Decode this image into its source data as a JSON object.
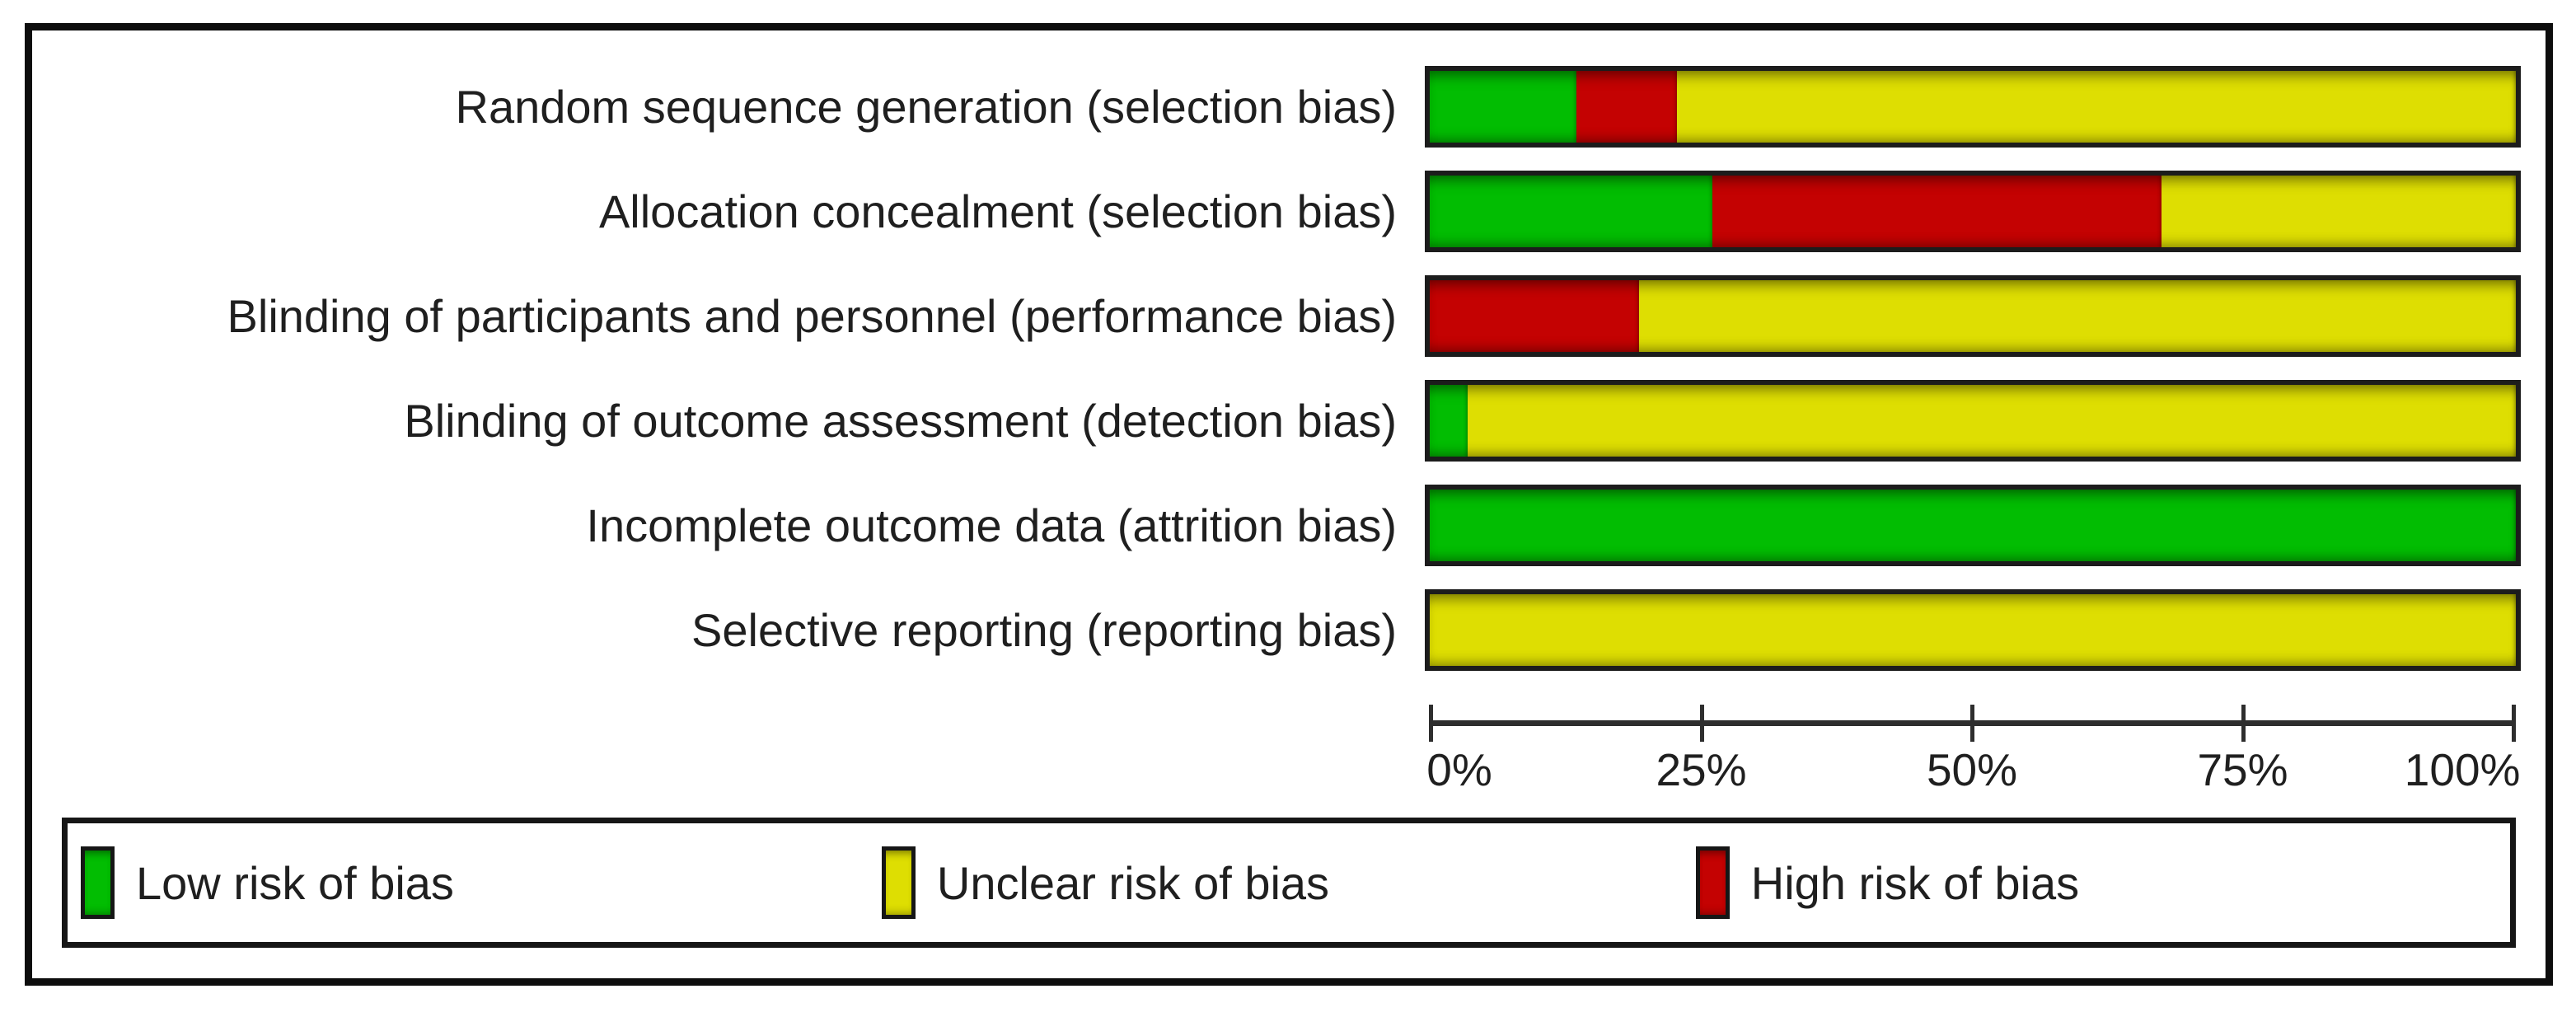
{
  "chart_data": {
    "type": "bar",
    "orientation": "horizontal",
    "stacked": true,
    "title": "",
    "xlabel": "",
    "ylabel": "",
    "categories": [
      "Random sequence generation (selection bias)",
      "Allocation concealment (selection bias)",
      "Blinding of participants and personnel (performance bias)",
      "Blinding of outcome assessment (detection bias)",
      "Incomplete outcome data (attrition bias)",
      "Selective reporting (reporting bias)"
    ],
    "series": [
      {
        "name": "Low risk of bias",
        "color": "#02BD02",
        "values": [
          13.5,
          26.0,
          0.0,
          3.5,
          100.0,
          0.0
        ]
      },
      {
        "name": "Unclear risk of bias",
        "color": "#DEDE02",
        "values": [
          77.2,
          32.6,
          80.7,
          96.5,
          0.0,
          100.0
        ]
      },
      {
        "name": "High risk of bias",
        "color": "#C40202",
        "values": [
          9.3,
          41.4,
          19.3,
          0.0,
          0.0,
          0.0
        ]
      }
    ],
    "segment_order_in_bars": [
      "low",
      "high",
      "unclear"
    ],
    "rows": [
      {
        "label": "Random sequence generation (selection bias)",
        "segments": [
          {
            "risk": "low",
            "pct": 13.5
          },
          {
            "risk": "high",
            "pct": 9.3
          },
          {
            "risk": "unclear",
            "pct": 77.2
          }
        ]
      },
      {
        "label": "Allocation concealment (selection bias)",
        "segments": [
          {
            "risk": "low",
            "pct": 26.0
          },
          {
            "risk": "high",
            "pct": 41.4
          },
          {
            "risk": "unclear",
            "pct": 32.6
          }
        ]
      },
      {
        "label": "Blinding of participants and personnel (performance bias)",
        "segments": [
          {
            "risk": "high",
            "pct": 19.3
          },
          {
            "risk": "unclear",
            "pct": 80.7
          }
        ]
      },
      {
        "label": "Blinding of outcome assessment (detection bias)",
        "segments": [
          {
            "risk": "low",
            "pct": 3.5
          },
          {
            "risk": "unclear",
            "pct": 96.5
          }
        ]
      },
      {
        "label": "Incomplete outcome data (attrition bias)",
        "segments": [
          {
            "risk": "low",
            "pct": 100.0
          }
        ]
      },
      {
        "label": "Selective reporting (reporting bias)",
        "segments": [
          {
            "risk": "unclear",
            "pct": 100.0
          }
        ]
      }
    ],
    "x_axis": {
      "range": [
        0,
        100
      ],
      "grid": false,
      "ticks": [
        {
          "label": "0%",
          "pos": 0
        },
        {
          "label": "25%",
          "pos": 25
        },
        {
          "label": "50%",
          "pos": 50
        },
        {
          "label": "75%",
          "pos": 75
        },
        {
          "label": "100%",
          "pos": 100
        }
      ]
    },
    "legend": {
      "position": "bottom",
      "items": [
        {
          "label": "Low risk of bias",
          "risk": "low"
        },
        {
          "label": "Unclear risk of bias",
          "risk": "unclear"
        },
        {
          "label": "High risk of bias",
          "risk": "high"
        }
      ]
    },
    "colors": {
      "low": "#02BD02",
      "unclear": "#DEDE02",
      "high": "#C40202"
    }
  }
}
